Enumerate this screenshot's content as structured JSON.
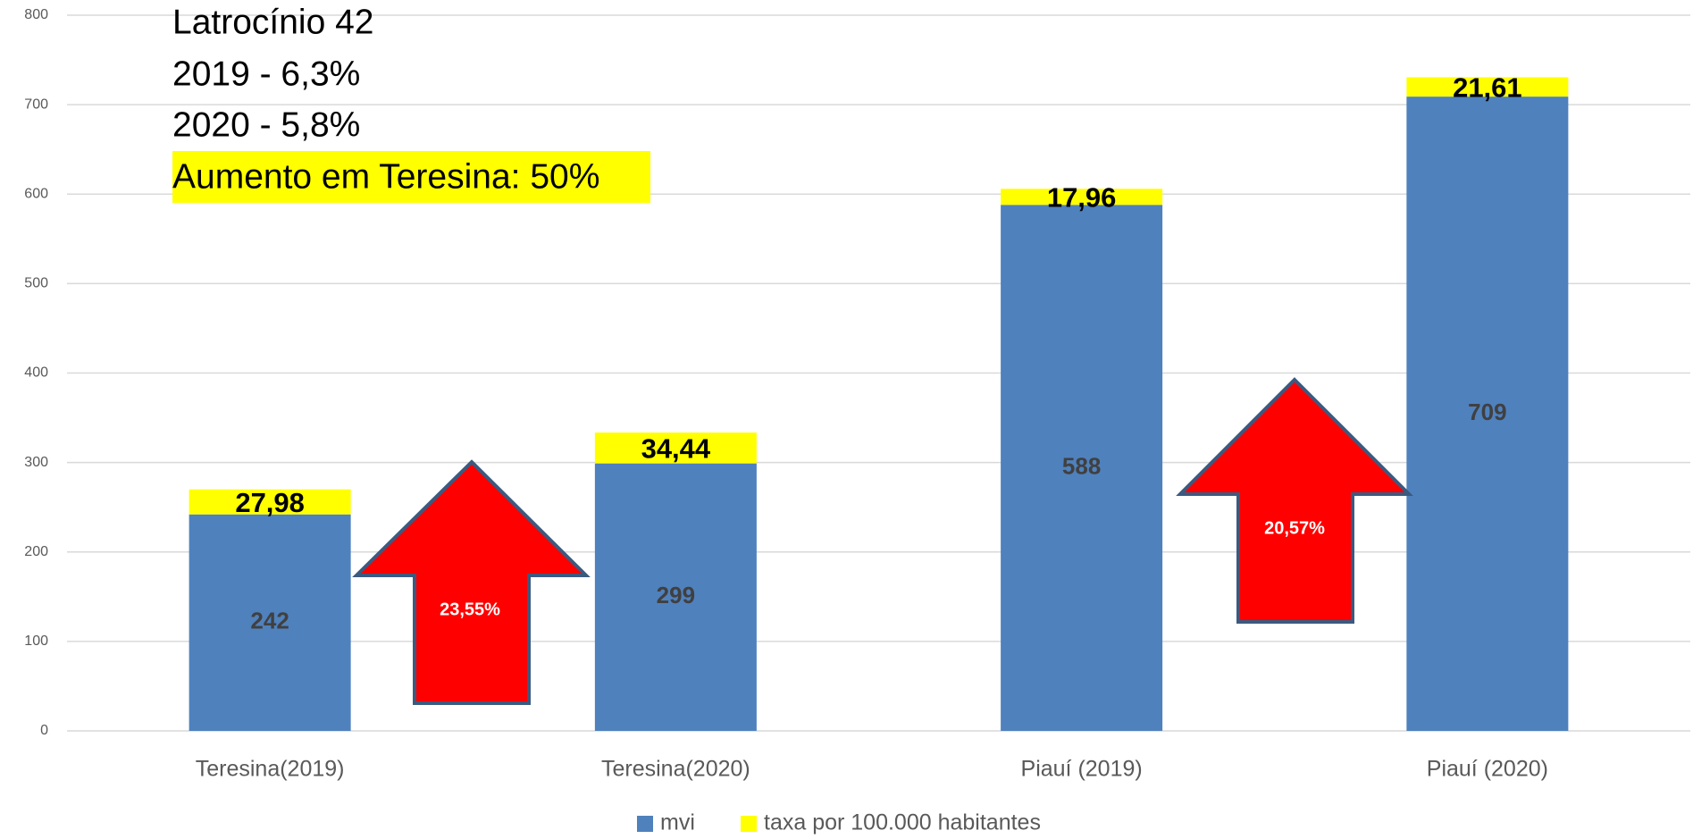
{
  "chart_data": {
    "type": "stacked_bar",
    "categories": [
      "Teresina(2019)",
      "Teresina(2020)",
      "Piauí (2019)",
      "Piauí (2020)"
    ],
    "series": [
      {
        "name": "mvi",
        "color": "#4f81bd",
        "values": [
          242,
          299,
          588,
          709
        ]
      },
      {
        "name": "taxa por 100.000 habitantes",
        "color": "#ffff00",
        "values": [
          27.98,
          34.44,
          17.96,
          21.61
        ],
        "value_labels": [
          "27,98",
          "34,44",
          "17,96",
          "21,61"
        ]
      }
    ],
    "ylim": [
      0,
      800
    ],
    "yticks": [
      0,
      100,
      200,
      300,
      400,
      500,
      600,
      700,
      800
    ],
    "grid": true,
    "legend": "bottom",
    "annotations": [
      "Latrocínio 42",
      "2019 - 6,3%",
      "2020 - 5,8%",
      "Aumento em Teresina: 50%"
    ],
    "arrow_labels": [
      "23,55%",
      "20,57%"
    ]
  }
}
